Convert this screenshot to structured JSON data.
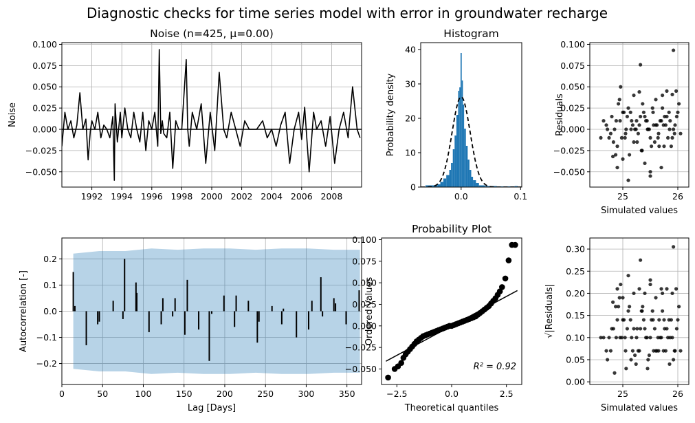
{
  "figure": {
    "suptitle": "Diagnostic checks for time series model with error in groundwater recharge"
  },
  "chart_data": [
    {
      "id": "noise",
      "type": "line",
      "title": "Noise (n=425, μ=0.00)",
      "xlabel": "",
      "ylabel": "Noise",
      "xlim": [
        1990.0,
        2010.0
      ],
      "ylim": [
        -0.068,
        0.102
      ],
      "xticks": [
        1992,
        1994,
        1996,
        1998,
        2000,
        2002,
        2004,
        2006,
        2008
      ],
      "yticks": [
        -0.05,
        -0.025,
        0.0,
        0.025,
        0.05,
        0.075,
        0.1
      ],
      "ytick_labels": [
        "−0.050",
        "−0.025",
        "0.000",
        "0.025",
        "0.050",
        "0.075",
        "0.100"
      ],
      "grid": true,
      "line_color": "#000000",
      "x": [
        1990.0,
        1990.2,
        1990.4,
        1990.6,
        1990.8,
        1991.0,
        1991.2,
        1991.4,
        1991.6,
        1991.75,
        1991.9,
        1992.0,
        1992.2,
        1992.4,
        1992.6,
        1992.8,
        1993.0,
        1993.2,
        1993.4,
        1993.5,
        1993.55,
        1993.7,
        1993.9,
        1994.0,
        1994.2,
        1994.4,
        1994.6,
        1994.8,
        1995.0,
        1995.2,
        1995.4,
        1995.6,
        1995.8,
        1996.0,
        1996.2,
        1996.4,
        1996.5,
        1996.6,
        1996.7,
        1996.8,
        1997.0,
        1997.2,
        1997.4,
        1997.6,
        1997.8,
        1998.0,
        1998.3,
        1998.4,
        1998.5,
        1998.7,
        1999.0,
        1999.3,
        1999.6,
        1999.9,
        2000.2,
        2000.5,
        2000.8,
        2001.0,
        2001.3,
        2001.6,
        2001.9,
        2002.2,
        2002.5,
        2003.0,
        2003.4,
        2003.7,
        2004.0,
        2004.3,
        2004.6,
        2004.9,
        2005.2,
        2005.5,
        2005.8,
        2006.0,
        2006.2,
        2006.5,
        2006.8,
        2007.0,
        2007.3,
        2007.6,
        2007.9,
        2008.2,
        2008.5,
        2008.8,
        2009.1,
        2009.4,
        2009.7,
        2009.9
      ],
      "y": [
        -0.02,
        0.02,
        0.0,
        0.01,
        -0.01,
        0.005,
        0.043,
        0.0,
        0.012,
        -0.036,
        -0.002,
        0.01,
        0.0,
        0.02,
        -0.01,
        0.005,
        0.0,
        -0.01,
        0.015,
        -0.06,
        0.03,
        -0.015,
        0.02,
        -0.01,
        0.025,
        0.0,
        -0.01,
        0.02,
        0.0,
        -0.015,
        0.02,
        -0.025,
        0.01,
        0.0,
        0.02,
        -0.02,
        0.094,
        -0.005,
        0.01,
        -0.005,
        -0.01,
        0.02,
        -0.046,
        0.01,
        0.0,
        0.0,
        0.082,
        0.0,
        -0.02,
        0.02,
        0.0,
        0.03,
        -0.04,
        0.02,
        -0.025,
        0.067,
        0.0,
        -0.01,
        0.02,
        0.0,
        -0.02,
        0.01,
        0.0,
        0.0,
        0.01,
        -0.01,
        0.0,
        -0.02,
        0.005,
        0.02,
        -0.04,
        0.0,
        0.02,
        -0.012,
        0.026,
        -0.05,
        0.02,
        0.0,
        0.01,
        -0.02,
        0.015,
        -0.04,
        0.0,
        0.02,
        -0.01,
        0.05,
        0.0,
        -0.01
      ]
    },
    {
      "id": "histogram",
      "type": "bar",
      "title": "Histogram",
      "xlabel": "",
      "ylabel": "Probability density",
      "xlim": [
        -0.068,
        0.102
      ],
      "ylim": [
        0,
        42
      ],
      "xticks": [
        0.0,
        0.1
      ],
      "xtick_labels": [
        "0.0",
        "0.1"
      ],
      "yticks": [
        0,
        10,
        20,
        30,
        40
      ],
      "grid": false,
      "bar_color": "#1f77b4",
      "bin_edges": [
        -0.06,
        -0.05,
        -0.04,
        -0.035,
        -0.03,
        -0.025,
        -0.02,
        -0.017,
        -0.014,
        -0.011,
        -0.008,
        -0.005,
        -0.003,
        -0.001,
        0.001,
        0.003,
        0.005,
        0.008,
        0.011,
        0.014,
        0.017,
        0.02,
        0.025,
        0.03,
        0.04,
        0.05,
        0.06,
        0.07,
        0.08,
        0.09,
        0.095
      ],
      "densities": [
        0.5,
        0.5,
        0.8,
        1.5,
        2.5,
        3.5,
        5,
        7,
        11,
        15,
        21,
        28,
        29,
        39,
        31,
        24,
        17,
        12,
        8,
        5,
        3,
        2,
        1.2,
        0.5,
        0.3,
        0.3,
        0.2,
        0.2,
        0.2,
        0.3
      ],
      "pdf_curve": {
        "style": "dashed",
        "color": "#000000",
        "mu": 0.0,
        "sigma": 0.0152
      }
    },
    {
      "id": "residuals-vs-simulated",
      "type": "scatter",
      "title": "",
      "xlabel": "Simulated values",
      "ylabel": "Residuals",
      "xlim": [
        24.4,
        26.2
      ],
      "ylim": [
        -0.068,
        0.102
      ],
      "xticks": [
        25,
        26
      ],
      "yticks": [
        -0.05,
        -0.025,
        0.0,
        0.025,
        0.05,
        0.075,
        0.1
      ],
      "ytick_labels": [
        "−0.050",
        "−0.025",
        "0.000",
        "0.025",
        "0.050",
        "0.075",
        "0.100"
      ],
      "grid": true,
      "point_color": "#000000",
      "x": [
        24.7,
        24.75,
        24.8,
        24.85,
        24.9,
        24.95,
        25.0,
        25.05,
        25.1,
        25.15,
        25.2,
        25.25,
        25.3,
        25.35,
        25.4,
        25.45,
        25.5,
        25.55,
        25.6,
        25.65,
        25.7,
        25.75,
        25.8,
        25.85,
        25.9,
        25.95,
        26.0,
        26.05,
        24.6,
        24.65,
        24.72,
        24.83,
        24.92,
        25.02,
        25.12,
        25.22,
        25.32,
        25.42,
        25.52,
        25.62,
        25.72,
        25.82,
        25.92,
        26.02,
        24.88,
        24.98,
        25.08,
        25.18,
        25.28,
        25.38,
        25.48,
        25.58,
        25.68,
        25.78,
        25.88,
        25.98,
        24.78,
        24.94,
        25.04,
        25.14,
        25.24,
        25.34,
        25.44,
        25.54,
        25.64,
        25.74,
        25.84,
        25.94,
        25.06,
        25.16,
        25.26,
        25.36,
        25.46,
        25.56,
        25.66,
        25.76,
        25.86,
        25.0,
        25.2,
        25.4,
        25.6,
        25.8,
        24.9,
        25.1,
        25.3,
        25.5,
        25.7,
        25.9,
        24.82,
        25.92,
        25.32,
        24.96,
        25.72,
        25.5,
        24.87,
        25.97
      ],
      "y": [
        0.005,
        -0.01,
        0.015,
        0.0,
        -0.02,
        0.01,
        0.02,
        -0.005,
        0.025,
        0.0,
        -0.015,
        0.01,
        0.005,
        -0.025,
        0.015,
        0.0,
        -0.01,
        0.02,
        0.005,
        -0.005,
        0.01,
        -0.02,
        0.015,
        0.0,
        -0.01,
        0.005,
        0.02,
        -0.005,
        -0.01,
        0.01,
        0.0,
        -0.015,
        0.03,
        0.02,
        -0.03,
        0.0,
        0.015,
        0.01,
        -0.02,
        0.005,
        0.025,
        -0.01,
        0.0,
        0.03,
        0.01,
        -0.01,
        0.015,
        0.005,
        -0.005,
        0.02,
        0.0,
        -0.015,
        0.01,
        0.005,
        -0.02,
        0.015,
        -0.005,
        0.035,
        -0.01,
        0.02,
        0.0,
        -0.025,
        0.01,
        0.025,
        -0.01,
        0.005,
        0.02,
        -0.005,
        0.0,
        0.01,
        -0.015,
        0.03,
        0.0,
        0.005,
        -0.02,
        0.015,
        0.01,
        -0.035,
        0.04,
        -0.04,
        0.035,
        0.045,
        -0.045,
        -0.06,
        0.044,
        -0.05,
        -0.045,
        0.041,
        -0.032,
        0.093,
        0.076,
        0.05,
        0.04,
        -0.055,
        -0.03,
        0.045
      ]
    },
    {
      "id": "autocorrelation",
      "type": "bar",
      "title": "",
      "xlabel": "Lag [Days]",
      "ylabel": "Autocorrelation [-]",
      "xlim": [
        0,
        368
      ],
      "ylim": [
        -0.28,
        0.28
      ],
      "xticks": [
        0,
        50,
        100,
        150,
        200,
        250,
        300,
        350
      ],
      "yticks": [
        -0.2,
        -0.1,
        0.0,
        0.1,
        0.2
      ],
      "ytick_labels": [
        "−0.2",
        "−0.1",
        "0.0",
        "0.1",
        "0.2"
      ],
      "grid": true,
      "confidence_band": {
        "color": "#1f77b4",
        "lag_start": 14,
        "lag_end": 366,
        "upper": [
          0.22,
          0.23,
          0.23,
          0.24,
          0.235,
          0.24,
          0.24,
          0.235,
          0.24,
          0.24,
          0.235,
          0.235
        ],
        "lower": [
          -0.22,
          -0.23,
          -0.23,
          -0.24,
          -0.235,
          -0.24,
          -0.24,
          -0.235,
          -0.24,
          -0.24,
          -0.235,
          -0.235
        ]
      },
      "lags": [
        14,
        16,
        30,
        44,
        46,
        63,
        75,
        77,
        91,
        92,
        107,
        122,
        124,
        136,
        139,
        151,
        154,
        168,
        181,
        184,
        199,
        212,
        214,
        229,
        240,
        242,
        258,
        270,
        272,
        288,
        303,
        307,
        318,
        320,
        334,
        336,
        349,
        365
      ],
      "values": [
        0.15,
        0.02,
        -0.13,
        -0.05,
        -0.04,
        0.04,
        -0.03,
        0.2,
        0.11,
        0.07,
        -0.08,
        -0.05,
        0.05,
        -0.02,
        0.05,
        -0.09,
        0.12,
        -0.07,
        -0.19,
        -0.01,
        0.06,
        -0.06,
        0.06,
        0.04,
        -0.12,
        -0.04,
        0.02,
        -0.05,
        0.01,
        -0.1,
        -0.07,
        0.04,
        0.13,
        -0.02,
        0.05,
        0.03,
        -0.05,
        0.08
      ]
    },
    {
      "id": "probability-plot",
      "type": "scatter",
      "title": "Probability Plot",
      "xlabel": "Theoretical quantiles",
      "ylabel": "Ordered Values",
      "xlim": [
        -3.2,
        3.2
      ],
      "ylim": [
        -0.068,
        0.102
      ],
      "xticks": [
        -2.5,
        0.0,
        2.5
      ],
      "xtick_labels": [
        "−2.5",
        "0.0",
        "2.5"
      ],
      "yticks": [
        -0.05,
        -0.025,
        0.0,
        0.025,
        0.05,
        0.075,
        0.1
      ],
      "ytick_labels": [
        "−0.050",
        "−0.025",
        "0.000",
        "0.025",
        "0.050",
        "0.075",
        "0.100"
      ],
      "grid": false,
      "annotation": "R² = 0.92",
      "fit_line": {
        "x": [
          -3.0,
          3.0
        ],
        "y": [
          -0.041,
          0.041
        ]
      },
      "x": [
        -2.9,
        -2.6,
        -2.45,
        -2.3,
        -2.2,
        -2.1,
        -2.0,
        -1.9,
        -1.8,
        -1.7,
        -1.6,
        -1.5,
        -1.4,
        -1.3,
        -1.2,
        -1.1,
        -1.0,
        -0.9,
        -0.8,
        -0.7,
        -0.6,
        -0.5,
        -0.4,
        -0.3,
        -0.2,
        -0.1,
        0.0,
        0.1,
        0.2,
        0.3,
        0.4,
        0.5,
        0.6,
        0.7,
        0.8,
        0.9,
        1.0,
        1.1,
        1.2,
        1.3,
        1.4,
        1.5,
        1.6,
        1.7,
        1.8,
        1.9,
        2.0,
        2.1,
        2.2,
        2.3,
        2.45,
        2.6,
        2.75,
        2.9
      ],
      "y": [
        -0.06,
        -0.05,
        -0.047,
        -0.043,
        -0.037,
        -0.033,
        -0.03,
        -0.027,
        -0.024,
        -0.021,
        -0.018,
        -0.016,
        -0.014,
        -0.012,
        -0.011,
        -0.01,
        -0.009,
        -0.008,
        -0.007,
        -0.006,
        -0.005,
        -0.004,
        -0.003,
        -0.002,
        -0.001,
        0.0,
        0.0,
        0.001,
        0.002,
        0.003,
        0.004,
        0.005,
        0.006,
        0.007,
        0.008,
        0.009,
        0.01,
        0.011,
        0.013,
        0.015,
        0.017,
        0.019,
        0.021,
        0.023,
        0.026,
        0.029,
        0.032,
        0.036,
        0.04,
        0.045,
        0.055,
        0.076,
        0.094,
        0.094
      ]
    },
    {
      "id": "sqrt-residuals-vs-simulated",
      "type": "scatter",
      "title": "",
      "xlabel": "Simulated values",
      "ylabel": "√|Residuals|",
      "xlim": [
        24.4,
        26.2
      ],
      "ylim": [
        -0.006,
        0.325
      ],
      "xticks": [
        25,
        26
      ],
      "yticks": [
        0.0,
        0.05,
        0.1,
        0.15,
        0.2,
        0.25,
        0.3
      ],
      "ytick_labels": [
        "0.00",
        "0.05",
        "0.10",
        "0.15",
        "0.20",
        "0.25",
        "0.30"
      ],
      "grid": true,
      "point_color": "#000000",
      "x": [
        24.7,
        24.75,
        24.8,
        24.85,
        24.9,
        24.95,
        25.0,
        25.05,
        25.1,
        25.15,
        25.2,
        25.25,
        25.3,
        25.35,
        25.4,
        25.45,
        25.5,
        25.55,
        25.6,
        25.65,
        25.7,
        25.75,
        25.8,
        25.85,
        25.9,
        25.95,
        26.0,
        26.05,
        24.6,
        24.65,
        24.72,
        24.83,
        24.92,
        25.02,
        25.12,
        25.22,
        25.32,
        25.42,
        25.52,
        25.62,
        25.72,
        25.82,
        25.92,
        26.02,
        24.88,
        24.98,
        25.08,
        25.18,
        25.28,
        25.38,
        25.48,
        25.58,
        25.68,
        25.78,
        25.88,
        25.98,
        24.78,
        24.94,
        25.04,
        25.14,
        25.24,
        25.34,
        25.44,
        25.54,
        25.64,
        25.74,
        25.84,
        25.94,
        25.06,
        25.16,
        25.26,
        25.36,
        25.46,
        25.56,
        25.66,
        25.76,
        25.86,
        25.0,
        25.2,
        25.4,
        25.6,
        25.8,
        24.9,
        25.1,
        25.3,
        25.5,
        25.7,
        25.9,
        24.82,
        25.92,
        25.32,
        24.96,
        25.72,
        25.5,
        24.87,
        25.97
      ],
      "y": [
        0.07,
        0.1,
        0.12,
        0.02,
        0.14,
        0.1,
        0.14,
        0.07,
        0.16,
        0.05,
        0.12,
        0.1,
        0.07,
        0.16,
        0.12,
        0.03,
        0.1,
        0.14,
        0.07,
        0.07,
        0.1,
        0.14,
        0.12,
        0.04,
        0.1,
        0.07,
        0.14,
        0.07,
        0.1,
        0.1,
        0.05,
        0.12,
        0.17,
        0.14,
        0.17,
        0.06,
        0.12,
        0.1,
        0.14,
        0.07,
        0.16,
        0.1,
        0.05,
        0.17,
        0.1,
        0.1,
        0.12,
        0.07,
        0.07,
        0.14,
        0.06,
        0.12,
        0.1,
        0.07,
        0.14,
        0.12,
        0.07,
        0.19,
        0.1,
        0.14,
        0.04,
        0.16,
        0.1,
        0.16,
        0.1,
        0.07,
        0.14,
        0.07,
        0.03,
        0.1,
        0.12,
        0.17,
        0.05,
        0.07,
        0.14,
        0.12,
        0.1,
        0.19,
        0.2,
        0.2,
        0.19,
        0.21,
        0.21,
        0.24,
        0.21,
        0.22,
        0.21,
        0.2,
        0.18,
        0.305,
        0.275,
        0.22,
        0.2,
        0.23,
        0.17,
        0.21
      ]
    }
  ]
}
